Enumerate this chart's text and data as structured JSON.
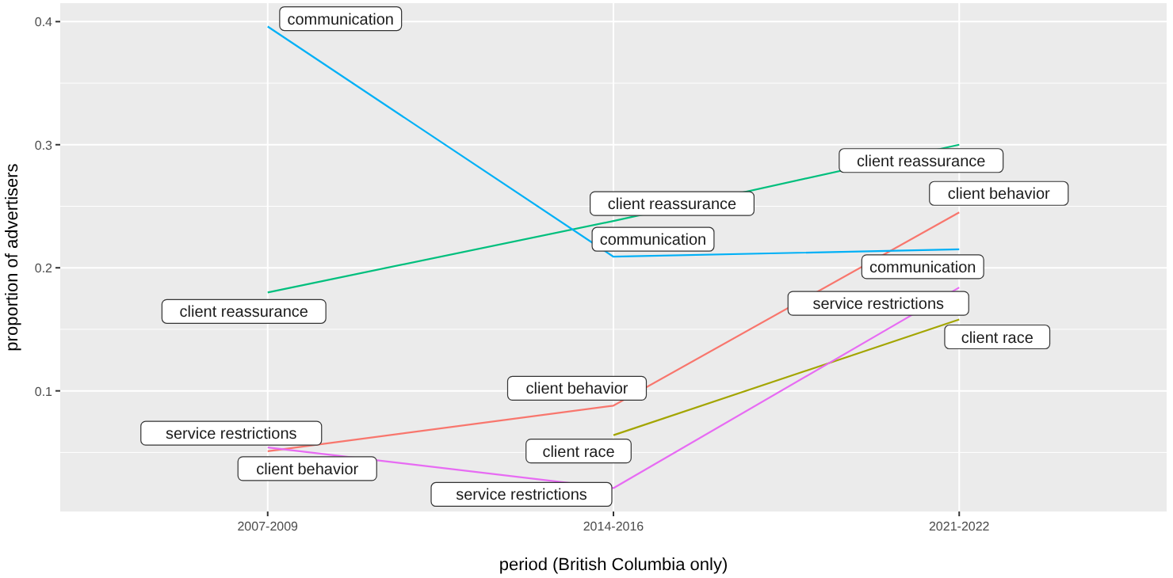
{
  "chart_data": {
    "type": "line",
    "xlabel": "period (British Columbia only)",
    "ylabel": "proportion of advertisers",
    "categories": [
      "2007-2009",
      "2014-2016",
      "2021-2022"
    ],
    "ylim": [
      0.002,
      0.415
    ],
    "yticks": [
      0.1,
      0.2,
      0.3,
      0.4
    ],
    "grid": true,
    "marker": "none",
    "line_style": "solid",
    "series": [
      {
        "name": "client behavior",
        "color": "#f8766d",
        "values": [
          0.051,
          0.088,
          0.245
        ]
      },
      {
        "name": "client race",
        "color": "#a3a500",
        "values": [
          null,
          0.064,
          0.158
        ]
      },
      {
        "name": "client reassurance",
        "color": "#00bf7d",
        "values": [
          0.18,
          0.238,
          0.3
        ]
      },
      {
        "name": "communication",
        "color": "#00b0f6",
        "values": [
          0.396,
          0.209,
          0.215
        ]
      },
      {
        "name": "service restrictions",
        "color": "#e76bf3",
        "values": [
          0.054,
          0.021,
          0.184
        ]
      }
    ]
  }
}
